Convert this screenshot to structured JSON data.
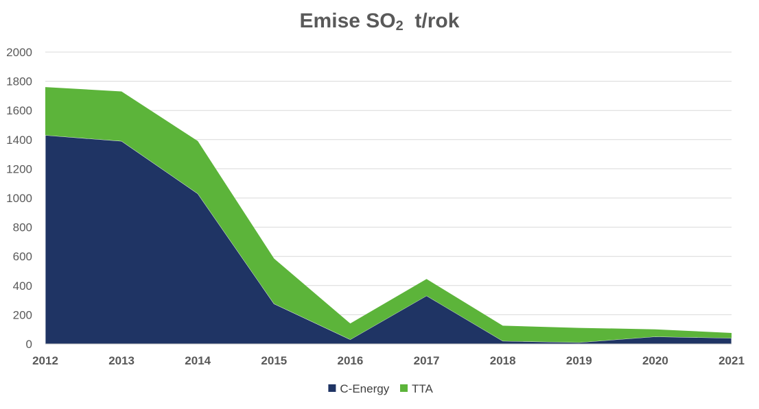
{
  "title": {
    "main": "Emise SO",
    "subscript": "2",
    "unit": "t/rok"
  },
  "colors": {
    "c_energy": "#1f3464",
    "tta": "#5cb43a",
    "grid": "#d9d9d9",
    "axis": "#bfbfbf",
    "text": "#595959"
  },
  "chart_data": {
    "type": "area",
    "stacked": true,
    "title": "Emise SO2 t/rok",
    "x": [
      "2012",
      "2013",
      "2014",
      "2015",
      "2016",
      "2017",
      "2018",
      "2019",
      "2020",
      "2021"
    ],
    "series": [
      {
        "name": "C-Energy",
        "values": [
          1430,
          1390,
          1030,
          275,
          30,
          330,
          20,
          10,
          50,
          40
        ],
        "color": "#1f3464"
      },
      {
        "name": "TTA",
        "values": [
          330,
          340,
          360,
          310,
          110,
          115,
          105,
          100,
          50,
          35
        ],
        "color": "#5cb43a"
      }
    ],
    "ylim": [
      0,
      2000
    ],
    "yticks": [
      "0",
      "200",
      "400",
      "600",
      "800",
      "1000",
      "1200",
      "1400",
      "1600",
      "1800",
      "2000"
    ],
    "grid": true,
    "legend_position": "bottom"
  }
}
